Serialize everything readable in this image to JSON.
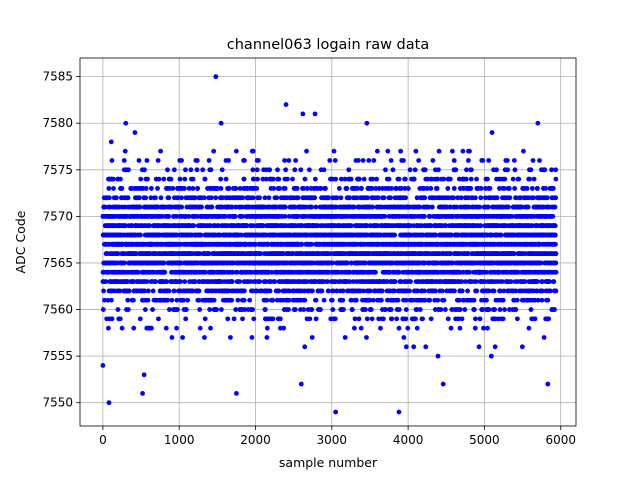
{
  "chart_data": {
    "type": "scatter",
    "title": "channel063 logain raw data",
    "xlabel": "sample number",
    "ylabel": "ADC Code",
    "xlim": [
      -300,
      6200
    ],
    "ylim": [
      7547.5,
      7587
    ],
    "xticks": [
      0,
      1000,
      2000,
      3000,
      4000,
      5000,
      6000
    ],
    "xtick_labels": [
      "0",
      "1000",
      "2000",
      "3000",
      "4000",
      "5000",
      "6000"
    ],
    "yticks": [
      7550,
      7555,
      7560,
      7565,
      7570,
      7575,
      7580,
      7585
    ],
    "ytick_labels": [
      "7550",
      "7555",
      "7560",
      "7565",
      "7570",
      "7575",
      "7580",
      "7585"
    ],
    "grid": true,
    "legend": "none",
    "series": [
      {
        "color": "#0000ff",
        "marker": "circle",
        "n_points": 5940,
        "core_band": [
          7558,
          7575
        ],
        "outliers": [
          {
            "x": 0,
            "y": 7554
          },
          {
            "x": 80,
            "y": 7550
          },
          {
            "x": 110,
            "y": 7578
          },
          {
            "x": 300,
            "y": 7580
          },
          {
            "x": 420,
            "y": 7579
          },
          {
            "x": 520,
            "y": 7551
          },
          {
            "x": 540,
            "y": 7553
          },
          {
            "x": 1480,
            "y": 7585
          },
          {
            "x": 1550,
            "y": 7580
          },
          {
            "x": 1750,
            "y": 7551
          },
          {
            "x": 2400,
            "y": 7582
          },
          {
            "x": 2600,
            "y": 7552
          },
          {
            "x": 2620,
            "y": 7581
          },
          {
            "x": 2780,
            "y": 7581
          },
          {
            "x": 3050,
            "y": 7549
          },
          {
            "x": 3460,
            "y": 7580
          },
          {
            "x": 3880,
            "y": 7549
          },
          {
            "x": 4460,
            "y": 7552
          },
          {
            "x": 5100,
            "y": 7579
          },
          {
            "x": 5700,
            "y": 7580
          },
          {
            "x": 5830,
            "y": 7552
          }
        ]
      }
    ]
  }
}
